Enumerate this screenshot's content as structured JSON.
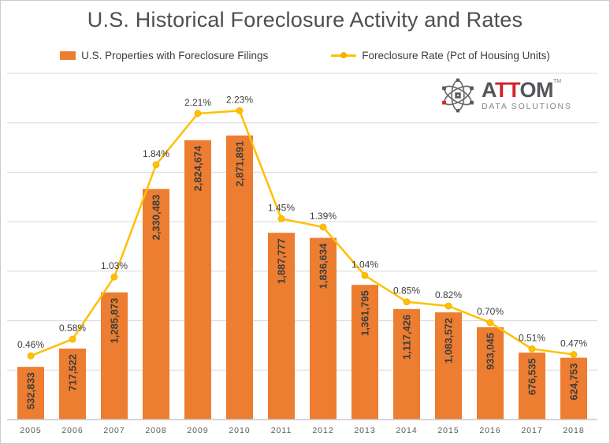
{
  "title": "U.S. Historical Foreclosure Activity and Rates",
  "legend": [
    {
      "label": "U.S. Properties with Foreclosure Filings",
      "type": "bar",
      "color": "#ED7D31"
    },
    {
      "label": "Foreclosure Rate (Pct of Housing Units)",
      "type": "line",
      "color": "#FFC000"
    }
  ],
  "logo": {
    "a": "A",
    "tt": "TT",
    "om": "OM",
    "tm": "TM",
    "sub": "DATA SOLUTIONS",
    "gray": "#54565A",
    "red": "#D2232A"
  },
  "chart_data": {
    "type": "bar+line combo",
    "title": "U.S. Historical Foreclosure Activity and Rates",
    "categories": [
      "2005",
      "2006",
      "2007",
      "2008",
      "2009",
      "2010",
      "2011",
      "2012",
      "2013",
      "2014",
      "2015",
      "2016",
      "2017",
      "2018"
    ],
    "series": [
      {
        "name": "U.S. Properties with Foreclosure Filings",
        "type": "bar",
        "axis": "primary",
        "color": "#ED7D31",
        "values": [
          532833,
          717522,
          1285873,
          2330483,
          2824674,
          2871891,
          1887777,
          1836634,
          1361795,
          1117426,
          1083572,
          933045,
          676535,
          624753
        ],
        "labels": [
          "532,833",
          "717,522",
          "1,285,873",
          "2,330,483",
          "2,824,674",
          "2,871,891",
          "1,887,777",
          "1,836,634",
          "1,361,795",
          "1,117,426",
          "1,083,572",
          "933,045",
          "676,535",
          "624,753"
        ]
      },
      {
        "name": "Foreclosure Rate (Pct of Housing Units)",
        "type": "line",
        "axis": "secondary",
        "color": "#FFC000",
        "values": [
          0.46,
          0.58,
          1.03,
          1.84,
          2.21,
          2.23,
          1.45,
          1.39,
          1.04,
          0.85,
          0.82,
          0.7,
          0.51,
          0.47
        ],
        "labels": [
          "0.46%",
          "0.58%",
          "1.03%",
          "1.84%",
          "2.21%",
          "2.23%",
          "1.45%",
          "1.39%",
          "1.04%",
          "0.85%",
          "0.82%",
          "0.70%",
          "0.51%",
          "0.47%"
        ]
      }
    ],
    "primary_axis": {
      "min": 0,
      "max": 3500000,
      "gridline_interval": 500000,
      "visible_labels": false
    },
    "secondary_axis": {
      "min": 0,
      "max": 2.5,
      "visible_labels": false
    },
    "grid": true,
    "legend_position": "top"
  }
}
